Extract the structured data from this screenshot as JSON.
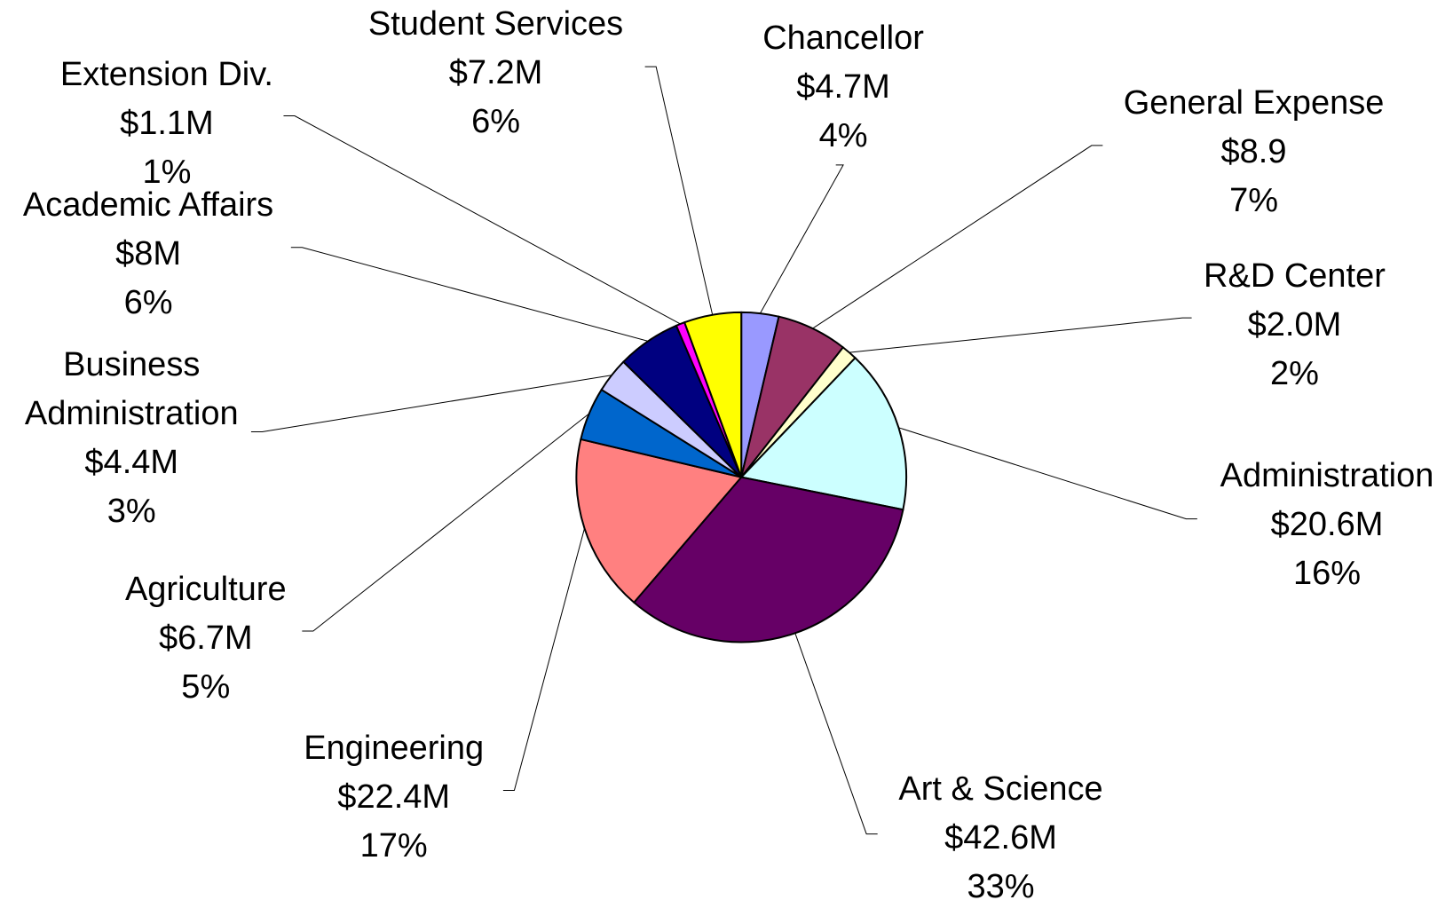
{
  "chart_data": {
    "type": "pie",
    "categories": [
      "Chancellor",
      "General Expense",
      "R&D Center",
      "Administration",
      "Art & Science",
      "Engineering",
      "Agriculture",
      "Business Administration",
      "Academic Affairs",
      "Extension Div.",
      "Student Services"
    ],
    "values": [
      4.7,
      8.9,
      2.0,
      20.6,
      42.6,
      22.4,
      6.7,
      4.4,
      8,
      1.1,
      7.2
    ],
    "value_labels": [
      "$4.7M",
      "$8.9",
      "$2.0M",
      "$20.6M",
      "$42.6M",
      "$22.4M",
      "$6.7M",
      "$4.4M",
      "$8M",
      "$1.1M",
      "$7.2M"
    ],
    "percent_labels": [
      "4%",
      "7%",
      "2%",
      "16%",
      "33%",
      "17%",
      "5%",
      "3%",
      "6%",
      "1%",
      "6%"
    ],
    "colors": [
      "#9999ff",
      "#993366",
      "#ffffcc",
      "#ccffff",
      "#660066",
      "#ff8080",
      "#0066cc",
      "#ccccff",
      "#000080",
      "#ff00ff",
      "#ffff00"
    ]
  }
}
